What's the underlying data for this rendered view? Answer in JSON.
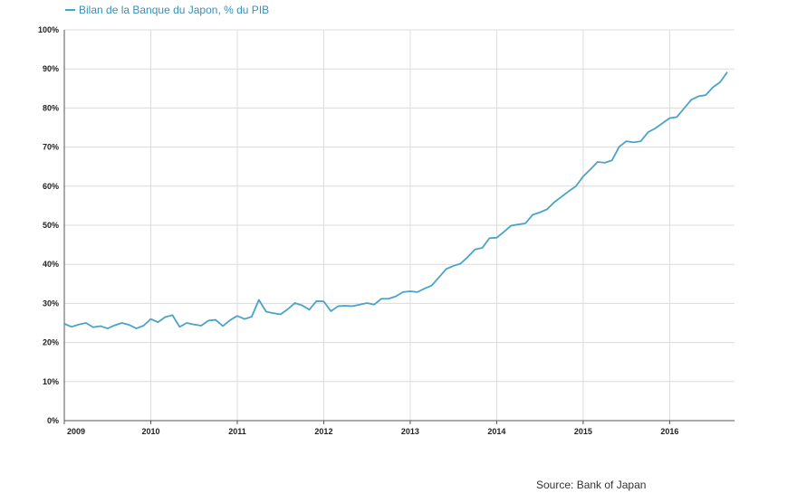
{
  "chart_data": {
    "type": "line",
    "series": [
      {
        "name": "Bilan de la Banque du Japon, % du PIB",
        "color": "#4aa3c8",
        "points": [
          [
            "2009-01",
            24.8
          ],
          [
            "2009-02",
            24.0
          ],
          [
            "2009-03",
            24.6
          ],
          [
            "2009-04",
            25.0
          ],
          [
            "2009-05",
            23.9
          ],
          [
            "2009-06",
            24.2
          ],
          [
            "2009-07",
            23.6
          ],
          [
            "2009-08",
            24.4
          ],
          [
            "2009-09",
            25.0
          ],
          [
            "2009-10",
            24.5
          ],
          [
            "2009-11",
            23.6
          ],
          [
            "2009-12",
            24.3
          ],
          [
            "2010-01",
            26.0
          ],
          [
            "2010-02",
            25.2
          ],
          [
            "2010-03",
            26.5
          ],
          [
            "2010-04",
            27.0
          ],
          [
            "2010-05",
            24.0
          ],
          [
            "2010-06",
            25.0
          ],
          [
            "2010-07",
            24.6
          ],
          [
            "2010-08",
            24.3
          ],
          [
            "2010-09",
            25.6
          ],
          [
            "2010-10",
            25.8
          ],
          [
            "2010-11",
            24.2
          ],
          [
            "2010-12",
            25.7
          ],
          [
            "2011-01",
            26.8
          ],
          [
            "2011-02",
            26.0
          ],
          [
            "2011-03",
            26.6
          ],
          [
            "2011-04",
            30.9
          ],
          [
            "2011-05",
            27.9
          ],
          [
            "2011-06",
            27.5
          ],
          [
            "2011-07",
            27.2
          ],
          [
            "2011-08",
            28.5
          ],
          [
            "2011-09",
            30.1
          ],
          [
            "2011-10",
            29.5
          ],
          [
            "2011-11",
            28.4
          ],
          [
            "2011-12",
            30.6
          ],
          [
            "2012-01",
            30.5
          ],
          [
            "2012-02",
            28.0
          ],
          [
            "2012-03",
            29.3
          ],
          [
            "2012-04",
            29.4
          ],
          [
            "2012-05",
            29.3
          ],
          [
            "2012-06",
            29.7
          ],
          [
            "2012-07",
            30.1
          ],
          [
            "2012-08",
            29.7
          ],
          [
            "2012-09",
            31.2
          ],
          [
            "2012-10",
            31.2
          ],
          [
            "2012-11",
            31.8
          ],
          [
            "2012-12",
            32.9
          ],
          [
            "2013-01",
            33.1
          ],
          [
            "2013-02",
            32.9
          ],
          [
            "2013-03",
            33.8
          ],
          [
            "2013-04",
            34.6
          ],
          [
            "2013-05",
            36.7
          ],
          [
            "2013-06",
            38.8
          ],
          [
            "2013-07",
            39.6
          ],
          [
            "2013-08",
            40.2
          ],
          [
            "2013-09",
            41.9
          ],
          [
            "2013-10",
            43.8
          ],
          [
            "2013-11",
            44.2
          ],
          [
            "2013-12",
            46.7
          ],
          [
            "2014-01",
            46.8
          ],
          [
            "2014-02",
            48.3
          ],
          [
            "2014-03",
            49.9
          ],
          [
            "2014-04",
            50.2
          ],
          [
            "2014-05",
            50.5
          ],
          [
            "2014-06",
            52.7
          ],
          [
            "2014-07",
            53.3
          ],
          [
            "2014-08",
            54.1
          ],
          [
            "2014-09",
            55.9
          ],
          [
            "2014-10",
            57.3
          ],
          [
            "2014-11",
            58.7
          ],
          [
            "2014-12",
            60.0
          ],
          [
            "2015-01",
            62.5
          ],
          [
            "2015-02",
            64.3
          ],
          [
            "2015-03",
            66.2
          ],
          [
            "2015-04",
            66.0
          ],
          [
            "2015-05",
            66.6
          ],
          [
            "2015-06",
            70.1
          ],
          [
            "2015-07",
            71.5
          ],
          [
            "2015-08",
            71.2
          ],
          [
            "2015-09",
            71.5
          ],
          [
            "2015-10",
            73.8
          ],
          [
            "2015-11",
            74.8
          ],
          [
            "2015-12",
            76.1
          ],
          [
            "2016-01",
            77.4
          ],
          [
            "2016-02",
            77.7
          ],
          [
            "2016-03",
            79.9
          ],
          [
            "2016-04",
            82.1
          ],
          [
            "2016-05",
            83.0
          ],
          [
            "2016-06",
            83.3
          ],
          [
            "2016-07",
            85.3
          ],
          [
            "2016-08",
            86.6
          ],
          [
            "2016-09",
            89.2
          ]
        ]
      }
    ],
    "x_tick_labels": [
      "2009",
      "2010",
      "2011",
      "2012",
      "2013",
      "2014",
      "2015",
      "2016"
    ],
    "y_tick_labels": [
      "0%",
      "10%",
      "20%",
      "30%",
      "40%",
      "50%",
      "60%",
      "70%",
      "80%",
      "90%",
      "100%"
    ],
    "y_ticks": [
      0,
      10,
      20,
      30,
      40,
      50,
      60,
      70,
      80,
      90,
      100
    ],
    "ylim": [
      0,
      100
    ],
    "xlim": [
      "2009-01",
      "2016-10"
    ],
    "grid": "vertical-at-year-starts-and-horizontal",
    "legend_position": "top-left",
    "source": "Source: Bank of Japan"
  }
}
